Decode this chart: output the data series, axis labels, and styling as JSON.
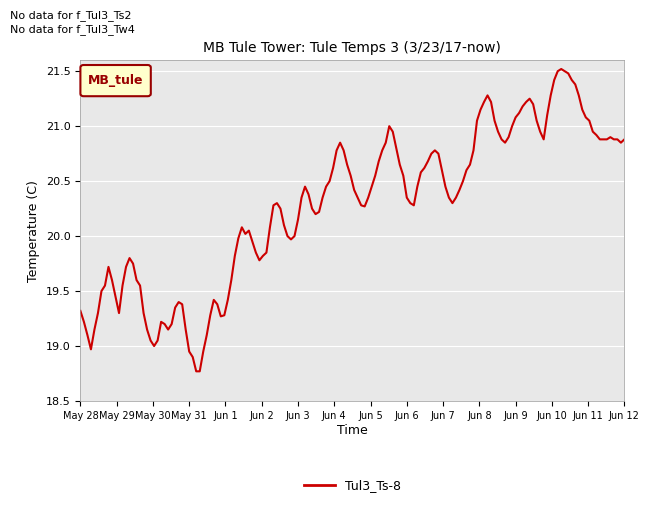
{
  "title": "MB Tule Tower: Tule Temps 3 (3/23/17-now)",
  "xlabel": "Time",
  "ylabel": "Temperature (C)",
  "no_data_text": [
    "No data for f_Tul3_Ts2",
    "No data for f_Tul3_Tw4"
  ],
  "legend_box_label": "MB_tule",
  "legend_box_color": "#990000",
  "legend_box_bg": "#ffffcc",
  "bottom_legend_label": "Tul3_Ts-8",
  "bottom_legend_color": "#cc0000",
  "line_color": "#cc0000",
  "background_color": "#e8e8e8",
  "ylim": [
    18.5,
    21.6
  ],
  "yticks": [
    18.5,
    19.0,
    19.5,
    20.0,
    20.5,
    21.0,
    21.5
  ],
  "x_tick_labels": [
    "May 28",
    "May 29",
    "May 30",
    "May 31",
    "Jun 1",
    "Jun 2",
    "Jun 3",
    "Jun 4",
    "Jun 5",
    "Jun 6",
    "Jun 7",
    "Jun 8",
    "Jun 9",
    "Jun 10",
    "Jun 11",
    "Jun 12"
  ],
  "y_values": [
    19.32,
    19.22,
    19.1,
    18.97,
    19.15,
    19.3,
    19.5,
    19.55,
    19.72,
    19.6,
    19.45,
    19.3,
    19.55,
    19.72,
    19.8,
    19.75,
    19.6,
    19.55,
    19.3,
    19.15,
    19.05,
    19.0,
    19.05,
    19.22,
    19.2,
    19.15,
    19.2,
    19.35,
    19.4,
    19.38,
    19.15,
    18.95,
    18.9,
    18.77,
    18.77,
    18.95,
    19.1,
    19.28,
    19.42,
    19.38,
    19.27,
    19.28,
    19.42,
    19.6,
    19.82,
    19.98,
    20.08,
    20.02,
    20.05,
    19.95,
    19.85,
    19.78,
    19.82,
    19.85,
    20.08,
    20.28,
    20.3,
    20.25,
    20.1,
    20.0,
    19.97,
    20.0,
    20.15,
    20.35,
    20.45,
    20.38,
    20.25,
    20.2,
    20.22,
    20.35,
    20.45,
    20.5,
    20.62,
    20.78,
    20.85,
    20.78,
    20.65,
    20.55,
    20.42,
    20.35,
    20.28,
    20.27,
    20.35,
    20.45,
    20.55,
    20.68,
    20.78,
    20.85,
    21.0,
    20.95,
    20.8,
    20.65,
    20.55,
    20.35,
    20.3,
    20.28,
    20.45,
    20.58,
    20.62,
    20.68,
    20.75,
    20.78,
    20.75,
    20.6,
    20.45,
    20.35,
    20.3,
    20.35,
    20.42,
    20.5,
    20.6,
    20.65,
    20.78,
    21.05,
    21.15,
    21.22,
    21.28,
    21.22,
    21.05,
    20.95,
    20.88,
    20.85,
    20.9,
    21.0,
    21.08,
    21.12,
    21.18,
    21.22,
    21.25,
    21.2,
    21.05,
    20.95,
    20.88,
    21.1,
    21.28,
    21.42,
    21.5,
    21.52,
    21.5,
    21.48,
    21.42,
    21.38,
    21.28,
    21.15,
    21.08,
    21.05,
    20.95,
    20.92,
    20.88,
    20.88,
    20.88,
    20.9,
    20.88,
    20.88,
    20.85,
    20.88
  ]
}
